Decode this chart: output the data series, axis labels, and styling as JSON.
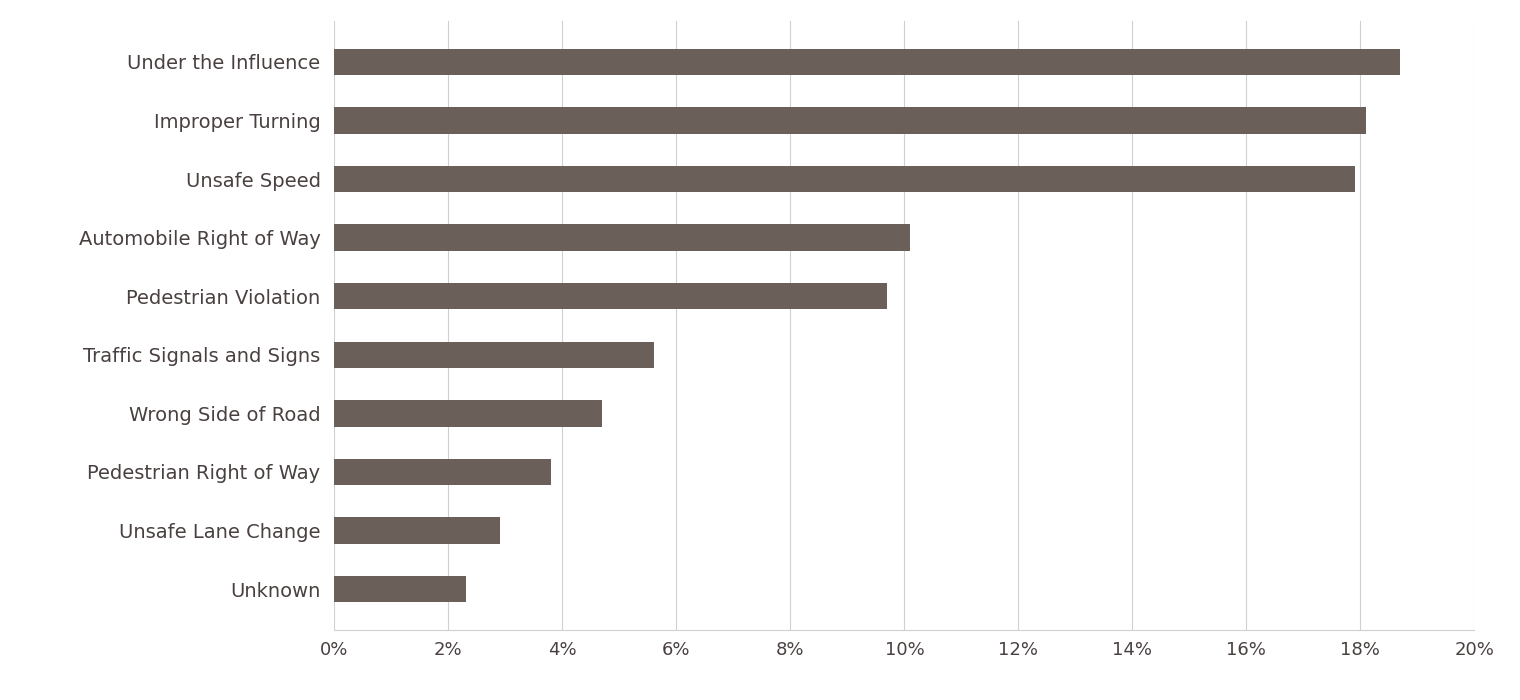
{
  "categories": [
    "Unknown",
    "Unsafe Lane Change",
    "Pedestrian Right of Way",
    "Wrong Side of Road",
    "Traffic Signals and Signs",
    "Pedestrian Violation",
    "Automobile Right of Way",
    "Unsafe Speed",
    "Improper Turning",
    "Under the Influence"
  ],
  "values": [
    2.3,
    2.9,
    3.8,
    4.7,
    5.6,
    9.7,
    10.1,
    17.9,
    18.1,
    18.7
  ],
  "bar_color": "#6b5f5a",
  "background_color": "#ffffff",
  "xlim": [
    0,
    20
  ],
  "xtick_values": [
    0,
    2,
    4,
    6,
    8,
    10,
    12,
    14,
    16,
    18,
    20
  ],
  "bar_height": 0.45,
  "label_fontsize": 14,
  "tick_fontsize": 13,
  "grid_color": "#d0d0d0",
  "text_color": "#4a4040"
}
